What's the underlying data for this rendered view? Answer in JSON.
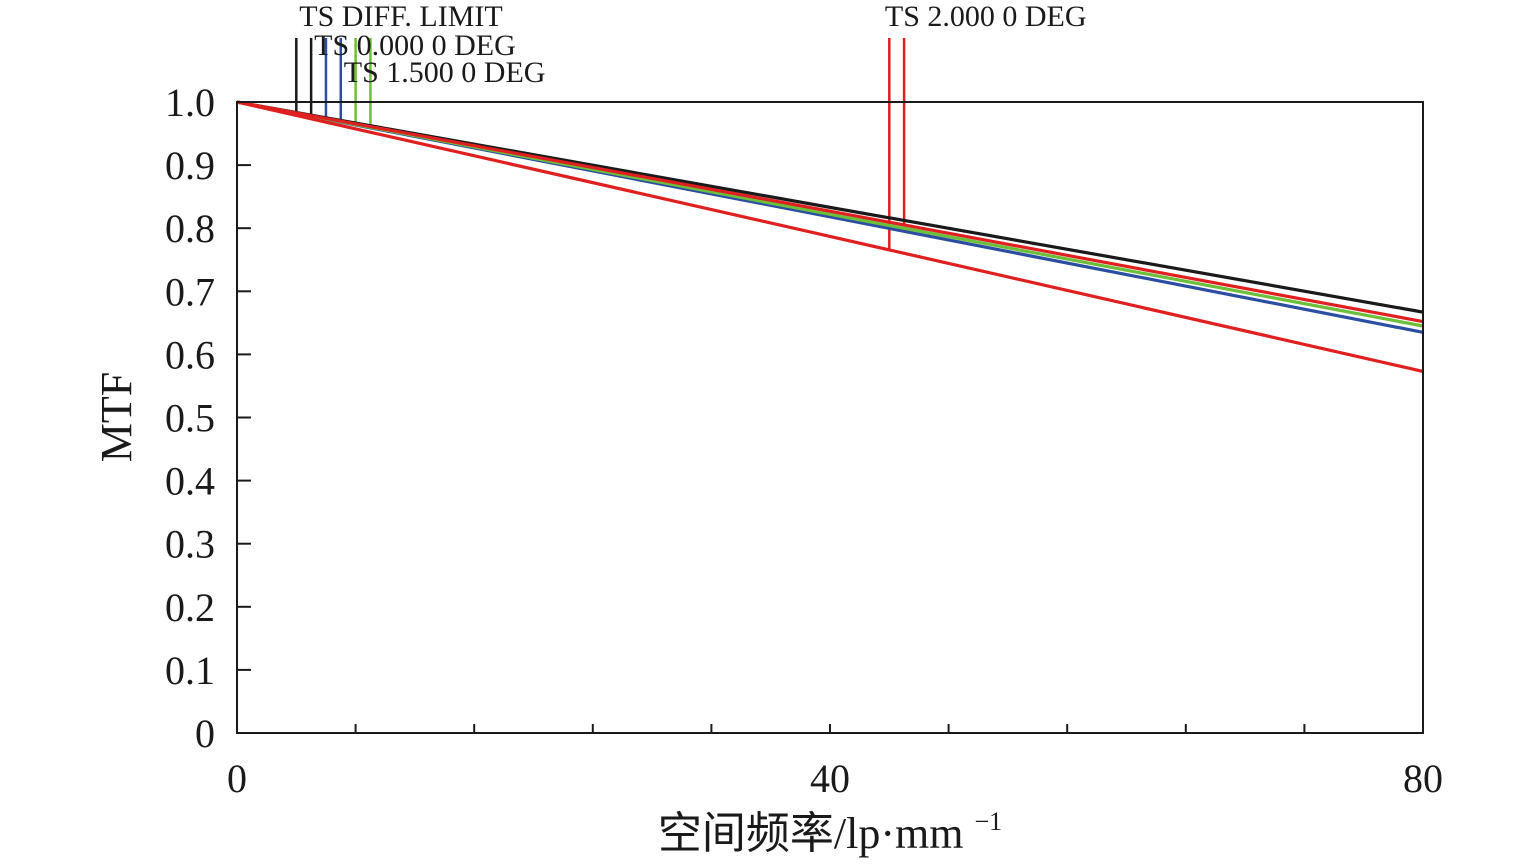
{
  "chart_data": {
    "type": "line",
    "xlabel": "空间频率/lp·mm",
    "xlabel_sup": "−1",
    "ylabel": "MTF",
    "xlim": [
      0,
      80
    ],
    "ylim": [
      0,
      1.0
    ],
    "x_ticks": [
      0,
      40,
      80
    ],
    "x_tick_labels": [
      "0",
      "40",
      "80"
    ],
    "x_minor_step": 8,
    "y_ticks": [
      0,
      0.1,
      0.2,
      0.3,
      0.4,
      0.5,
      0.6,
      0.7,
      0.8,
      0.9,
      1.0
    ],
    "y_tick_labels": [
      "0",
      "0.1",
      "0.2",
      "0.3",
      "0.4",
      "0.5",
      "0.6",
      "0.7",
      "0.8",
      "0.9",
      "1.0"
    ],
    "series": [
      {
        "name": "TS DIFF. LIMIT",
        "color": "#1a1a1a",
        "x": [
          0,
          40,
          80
        ],
        "y": [
          1.0,
          0.833,
          0.667
        ],
        "marker_x": [
          4,
          5
        ]
      },
      {
        "name": "TS 0.000 0 DEG",
        "color": "#2b4ea2",
        "x": [
          0,
          40,
          80
        ],
        "y": [
          1.0,
          0.818,
          0.635
        ],
        "marker_x": [
          6,
          7
        ]
      },
      {
        "name": "TS 1.500 0 DEG",
        "color": "#6cbf3a",
        "x": [
          0,
          40,
          80
        ],
        "y": [
          1.0,
          0.822,
          0.645
        ],
        "marker_x": [
          8,
          9
        ]
      },
      {
        "name": "TS 2.000 0 DEG",
        "color": "#e02020",
        "x": [
          0,
          40,
          80
        ],
        "y": [
          1.0,
          0.827,
          0.652
        ],
        "marker_x": [
          45
        ]
      },
      {
        "name": "",
        "color": "#e02020",
        "x": [
          0,
          40,
          80
        ],
        "y": [
          1.0,
          0.787,
          0.573
        ],
        "marker_x": [
          44
        ]
      }
    ],
    "legend_labels": [
      {
        "text": "TS DIFF. LIMIT",
        "at_x": 4,
        "row": 0
      },
      {
        "text": "TS 0.000 0 DEG",
        "at_x": 5,
        "row": 1
      },
      {
        "text": "TS 1.500 0 DEG",
        "at_x": 7,
        "row": 2
      },
      {
        "text": "TS 2.000 0 DEG",
        "at_x": 43.5,
        "row": 0
      }
    ],
    "grid": false
  }
}
